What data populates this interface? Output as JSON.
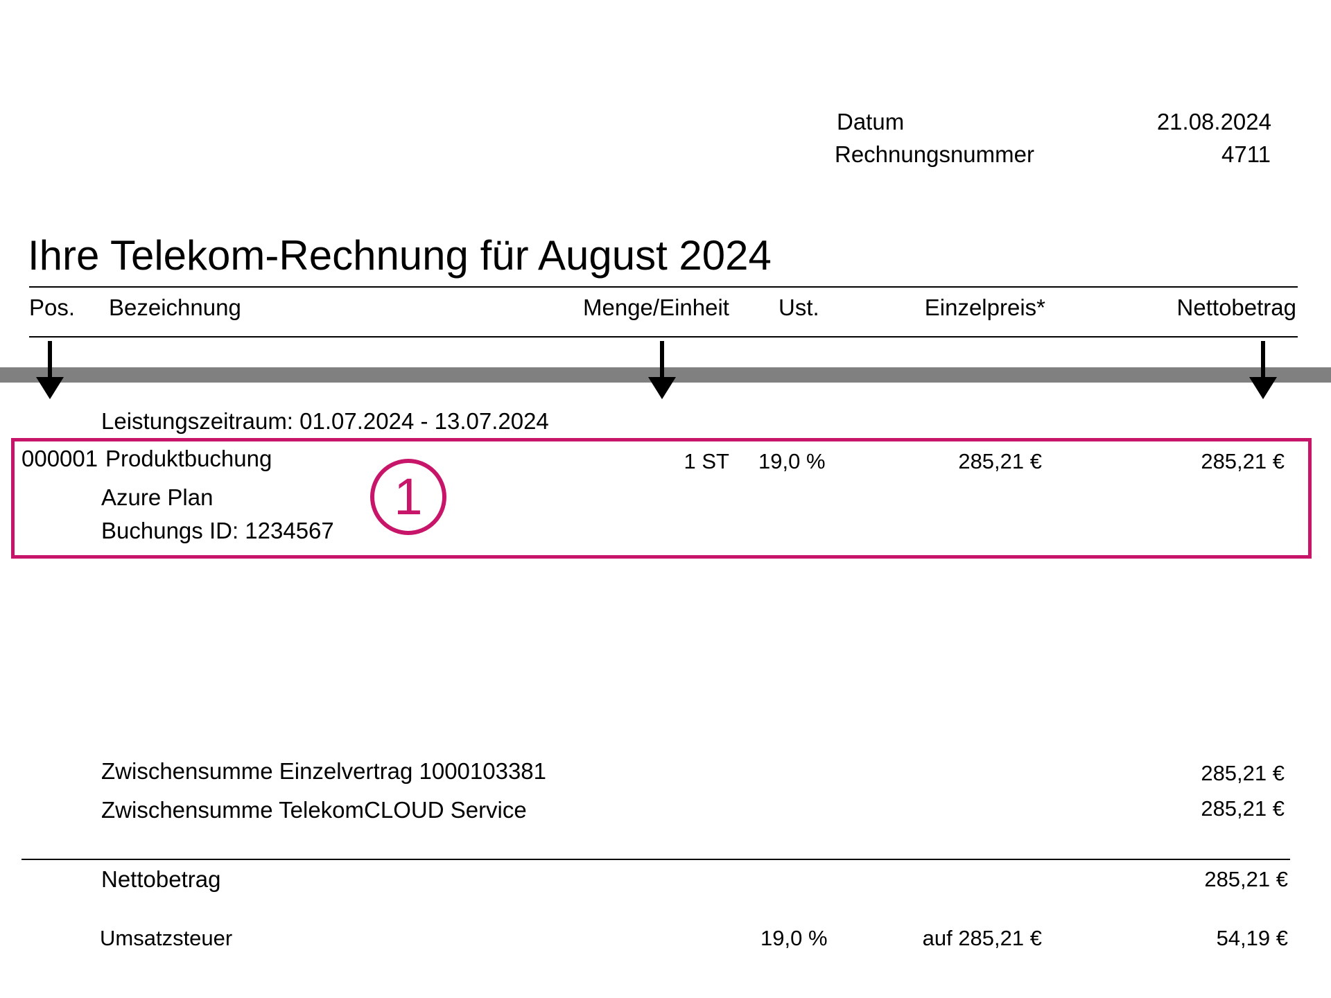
{
  "meta": {
    "date_label": "Datum",
    "date_value": "21.08.2024",
    "invoice_label": "Rechnungsnummer",
    "invoice_value": "4711"
  },
  "title": "Ihre Telekom-Rechnung für August 2024",
  "columns": {
    "pos": "Pos.",
    "description": "Bezeichnung",
    "quantity": "Menge/Einheit",
    "vat": "Ust.",
    "unit_price": "Einzelpreis*",
    "net_amount": "Nettobetrag"
  },
  "period": "Leistungszeitraum: 01.07.2024 - 13.07.2024",
  "item": {
    "pos": "000001",
    "name": "Produktbuchung",
    "quantity": "1 ST",
    "vat": "19,0 %",
    "unit_price": "285,21 €",
    "net": "285,21 €",
    "detail_1": "Azure Plan",
    "detail_2": "Buchungs ID: 1234567"
  },
  "marker": "1",
  "highlight_color": "#c7156a",
  "subtotals": [
    {
      "label": "Zwischensumme Einzelvertrag 1000103381",
      "value": "285,21 €"
    },
    {
      "label": "Zwischensumme TelekomCLOUD Service",
      "value": "285,21 €"
    }
  ],
  "net_total": {
    "label": "Nettobetrag",
    "value": "285,21 €"
  },
  "tax": {
    "label": "Umsatzsteuer",
    "rate": "19,0 %",
    "base": "auf 285,21 €",
    "value": "54,19 €"
  }
}
